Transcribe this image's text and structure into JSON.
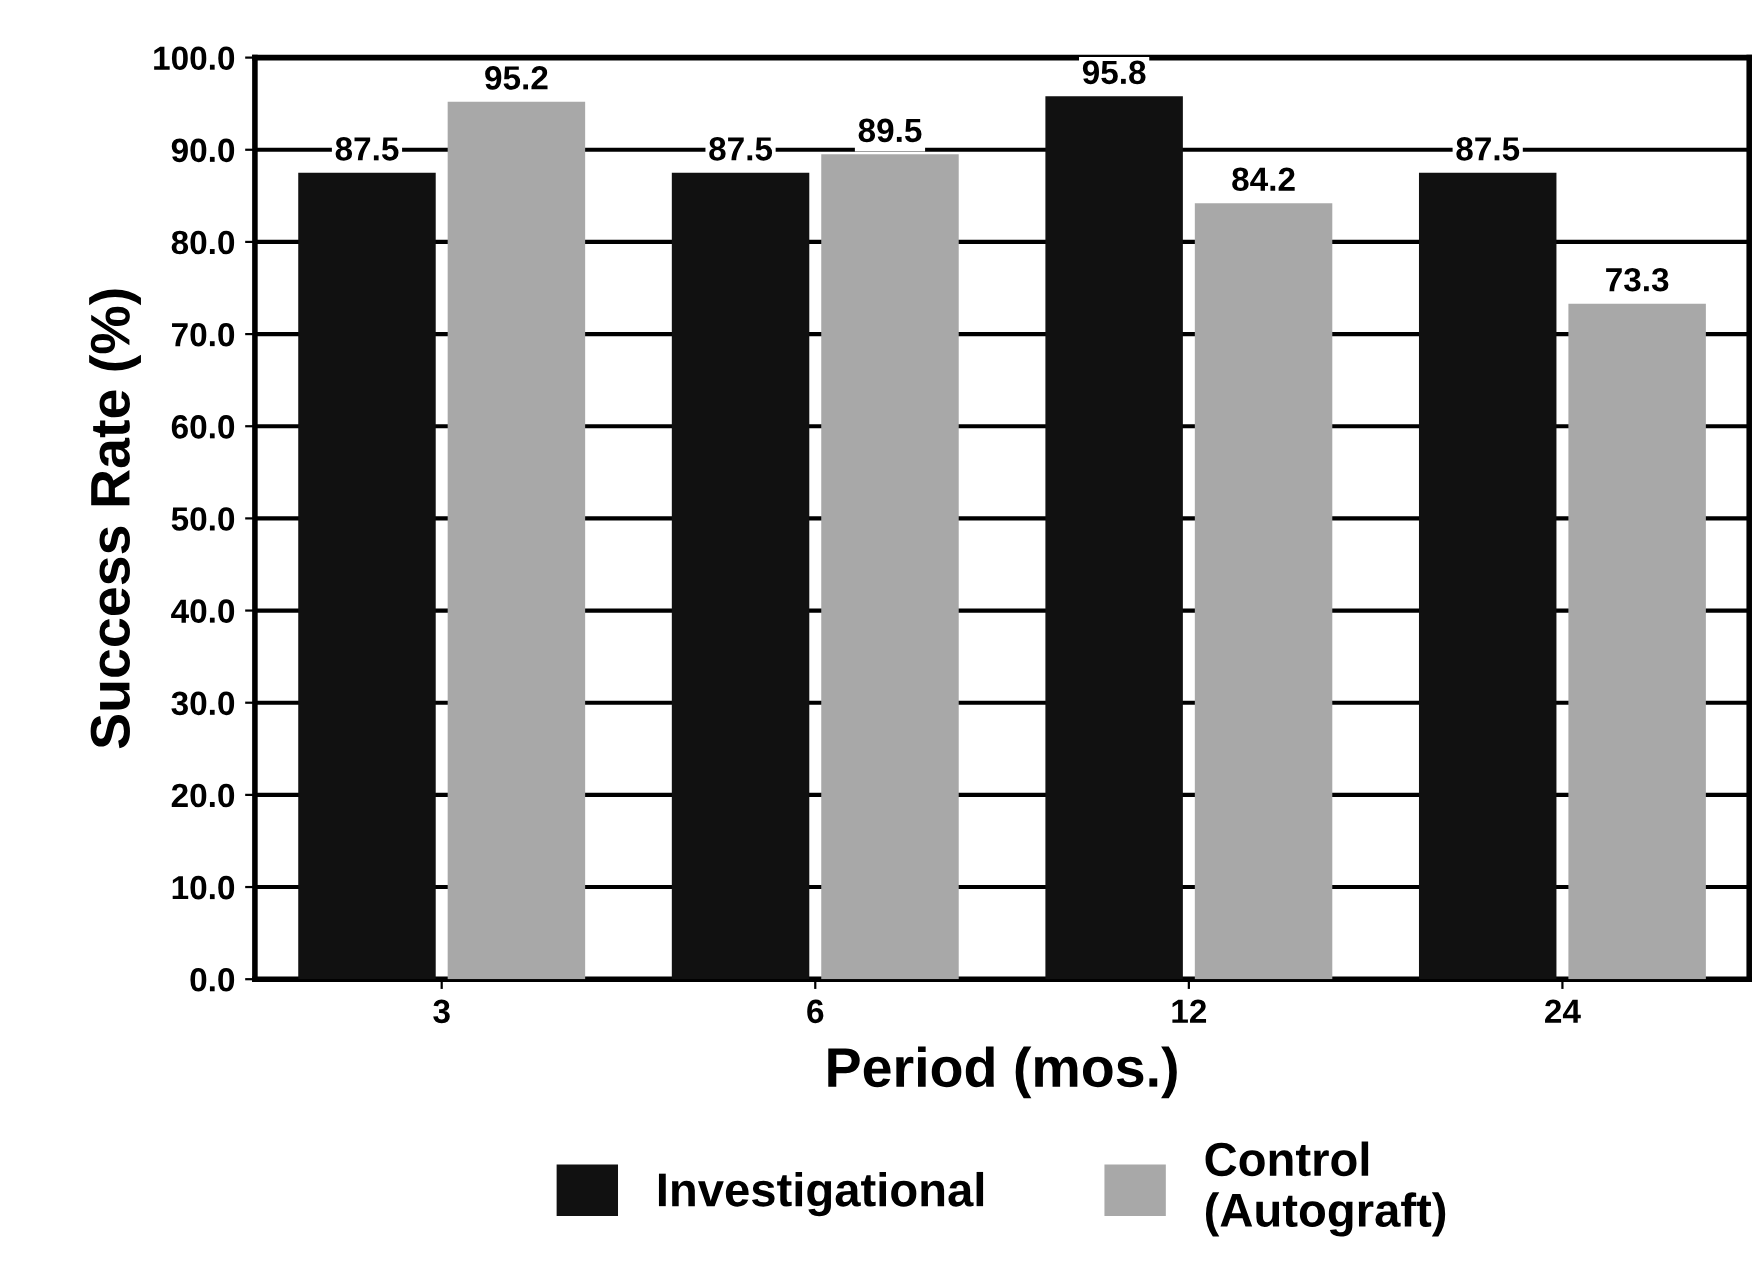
{
  "chart_data": {
    "type": "bar",
    "xlabel": "Period (mos.)",
    "ylabel": "Success Rate (%)",
    "categories": [
      "3",
      "6",
      "12",
      "24"
    ],
    "series": [
      {
        "name": "Investigational",
        "color": "#111111",
        "values": [
          87.5,
          87.5,
          95.8,
          87.5
        ]
      },
      {
        "name": "Control\n(Autograft)",
        "color": "#a8a8a8",
        "values": [
          95.2,
          89.5,
          84.2,
          73.3
        ]
      }
    ],
    "ylim": [
      0,
      100
    ],
    "yticks": [
      {
        "value": 0,
        "label": "0.0"
      },
      {
        "value": 10,
        "label": "10.0"
      },
      {
        "value": 20,
        "label": "20.0"
      },
      {
        "value": 30,
        "label": "30.0"
      },
      {
        "value": 40,
        "label": "40.0"
      },
      {
        "value": 50,
        "label": "50.0"
      },
      {
        "value": 60,
        "label": "60.0"
      },
      {
        "value": 70,
        "label": "70.0"
      },
      {
        "value": 80,
        "label": "80.0"
      },
      {
        "value": 90,
        "label": "90.0"
      },
      {
        "value": 100,
        "label": "100.0"
      }
    ],
    "grid": "y",
    "legend": "bottom",
    "data_labels": true
  }
}
